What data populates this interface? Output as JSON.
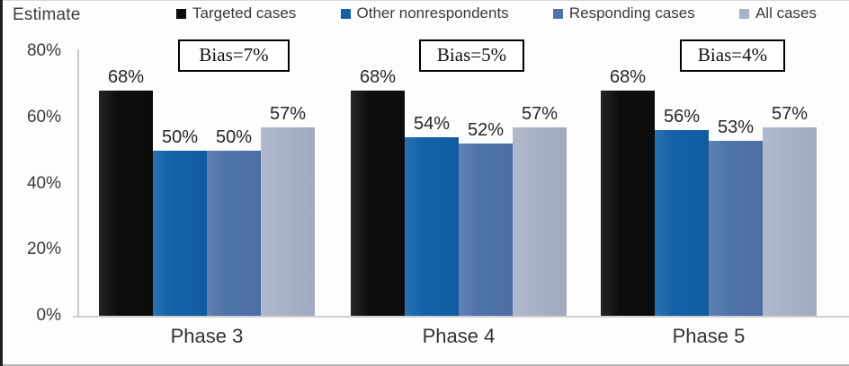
{
  "chart_data": {
    "type": "bar",
    "title": "Estimate",
    "categories": [
      "Phase 3",
      "Phase 4",
      "Phase 5"
    ],
    "series": [
      {
        "name": "Targeted cases",
        "color": "#0d0d0d",
        "values": [
          68,
          68,
          68
        ]
      },
      {
        "name": "Other nonrespondents",
        "color": "#1261a8",
        "values": [
          50,
          54,
          56
        ]
      },
      {
        "name": "Responding cases",
        "color": "#4f74ab",
        "values": [
          50,
          52,
          53
        ]
      },
      {
        "name": "All cases",
        "color": "#a9b2c7",
        "values": [
          57,
          57,
          57
        ]
      }
    ],
    "annotations": [
      "Bias=7%",
      "Bias=5%",
      "Bias=4%"
    ],
    "value_label_format": "{v}%",
    "yticks": [
      "0%",
      "20%",
      "40%",
      "60%",
      "80%"
    ],
    "ylim": [
      0,
      80
    ],
    "xlabel": "",
    "ylabel": "Estimate",
    "legend_position": "top",
    "grid": false
  }
}
